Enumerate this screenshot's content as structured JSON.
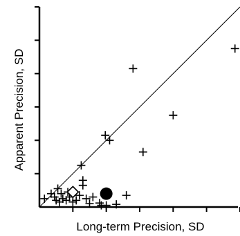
{
  "chart_data": {
    "type": "scatter",
    "title": "",
    "xlabel": "Long-term Precision, SD",
    "ylabel": "Apparent Precision, SD",
    "xlim": [
      0,
      6
    ],
    "ylim": [
      0,
      6
    ],
    "x_ticks": [
      1,
      2,
      3,
      4,
      5,
      6
    ],
    "y_ticks": [
      1,
      2,
      3,
      4,
      5,
      6
    ],
    "tick_labels_shown": false,
    "grid": false,
    "legend": "none",
    "reference_line": {
      "type": "identity",
      "from": [
        0,
        0
      ],
      "to": [
        6,
        6
      ]
    },
    "series": [
      {
        "marker": "plus",
        "color": "#000000",
        "points": [
          [
            0.15,
            0.25
          ],
          [
            0.5,
            0.2
          ],
          [
            0.6,
            0.15
          ],
          [
            0.7,
            0.25
          ],
          [
            0.8,
            0.2
          ],
          [
            0.9,
            0.3
          ],
          [
            1.0,
            0.15
          ],
          [
            1.1,
            0.2
          ],
          [
            1.2,
            0.35
          ],
          [
            1.4,
            0.25
          ],
          [
            1.5,
            0.1
          ],
          [
            1.3,
            0.65
          ],
          [
            1.6,
            0.3
          ],
          [
            0.45,
            0.3
          ],
          [
            0.55,
            0.55
          ],
          [
            0.65,
            0.4
          ],
          [
            0.85,
            0.45
          ],
          [
            1.0,
            0.4
          ],
          [
            0.35,
            0.4
          ],
          [
            1.3,
            0.8
          ],
          [
            1.25,
            1.25
          ],
          [
            1.85,
            0.05
          ],
          [
            1.8,
            0.12
          ],
          [
            2.3,
            0.08
          ],
          [
            2.6,
            0.35
          ],
          [
            2.0,
            0.05
          ],
          [
            1.97,
            2.15
          ],
          [
            2.1,
            2.0
          ],
          [
            3.1,
            1.65
          ],
          [
            4.0,
            2.75
          ],
          [
            2.8,
            4.15
          ],
          [
            5.85,
            4.75
          ]
        ]
      },
      {
        "marker": "open-diamond",
        "color": "#000000",
        "points": [
          [
            1.0,
            0.45
          ]
        ]
      },
      {
        "marker": "filled-circle",
        "color": "#000000",
        "points": [
          [
            2.0,
            0.4
          ]
        ]
      }
    ]
  }
}
